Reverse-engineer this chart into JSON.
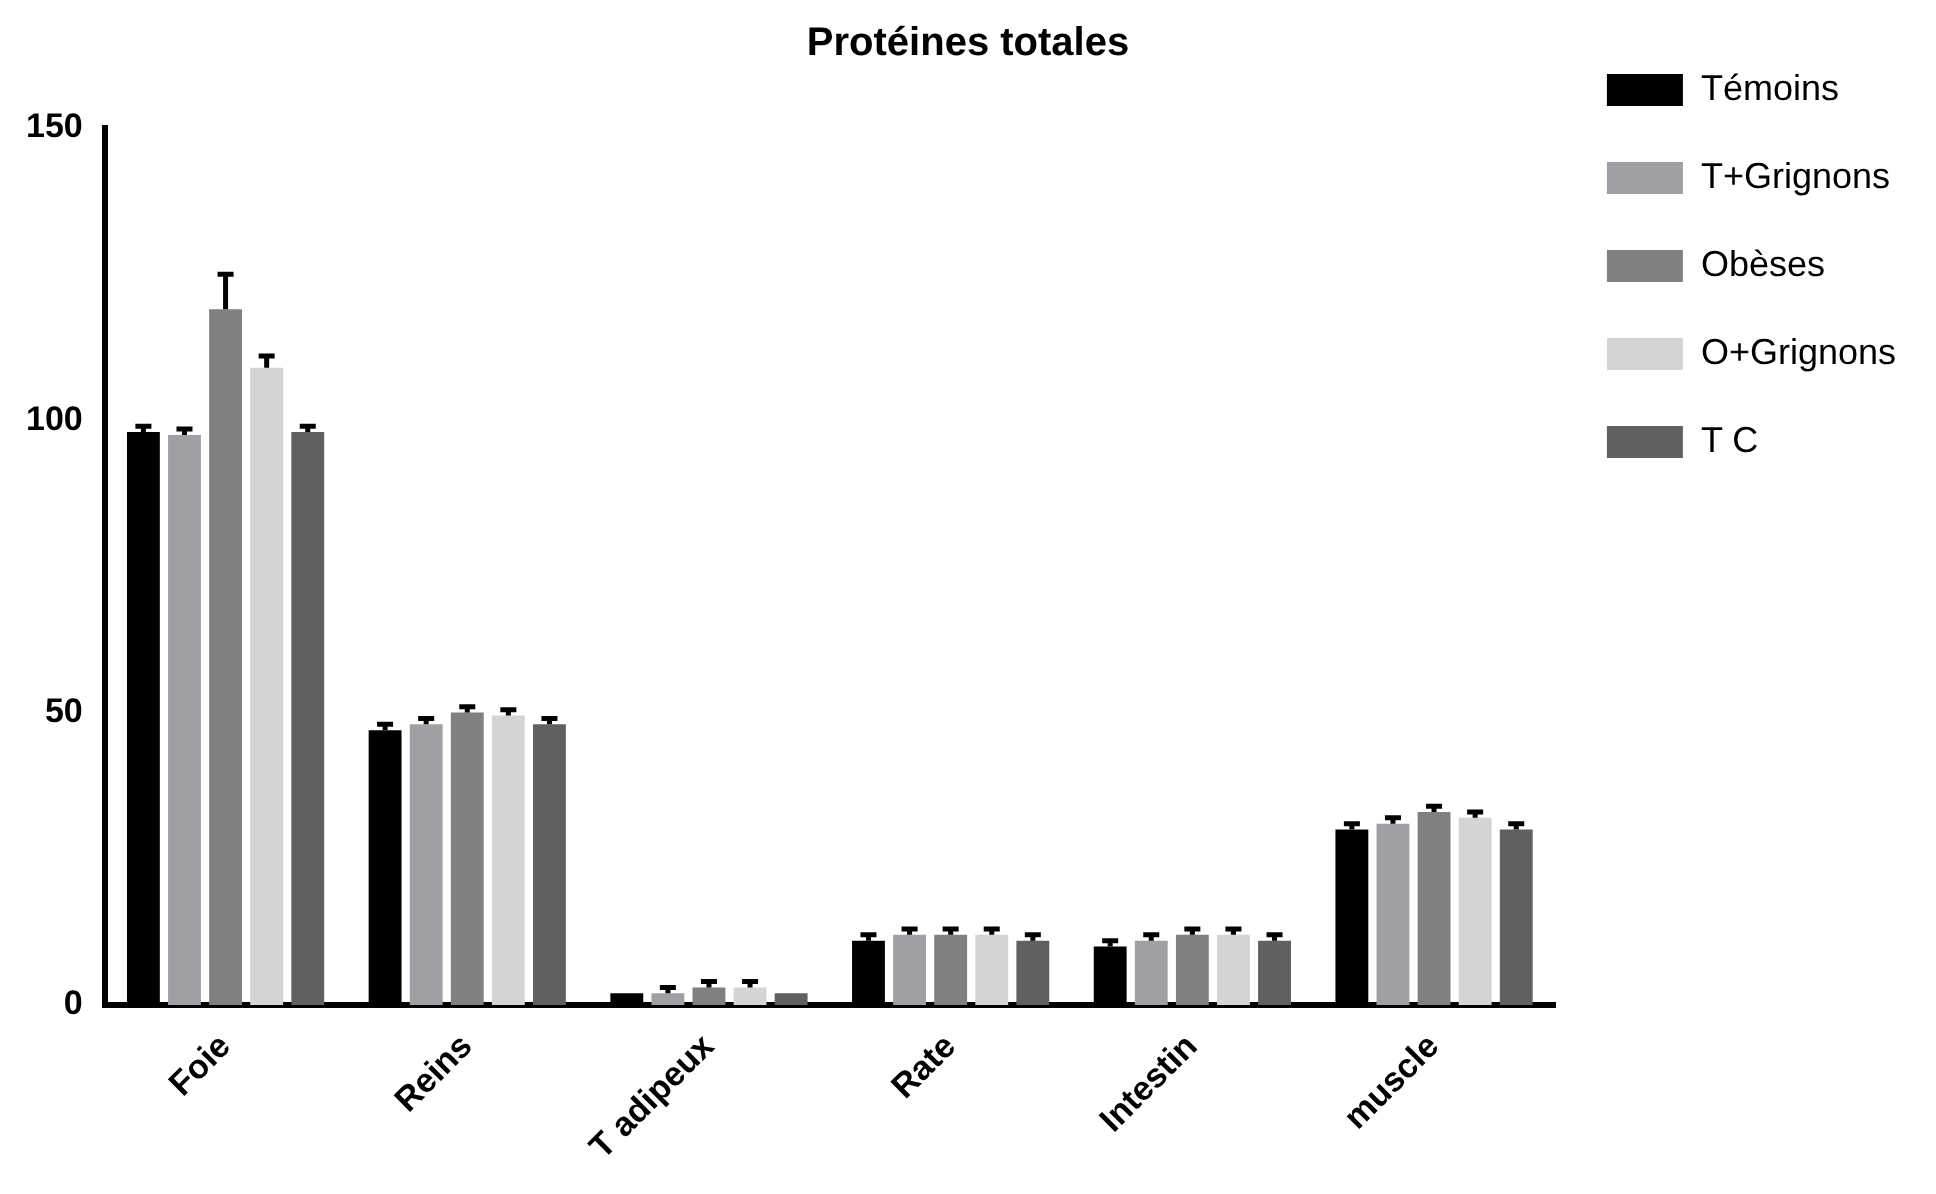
{
  "chart_data": {
    "type": "bar",
    "title": "Protéines totales",
    "categories": [
      "Foie",
      "Reins",
      "T adipeux",
      "Rate",
      "Intestin",
      "muscle"
    ],
    "series": [
      {
        "name": "Témoins",
        "color": "#000000",
        "values": [
          98,
          47,
          2,
          11,
          10,
          30
        ],
        "errors": [
          1,
          1,
          null,
          1,
          1,
          1
        ]
      },
      {
        "name": "T+Grignons",
        "color": "#a0a0a4",
        "values": [
          97.5,
          48,
          2,
          12,
          11,
          31
        ],
        "errors": [
          1,
          1,
          1,
          1,
          1,
          1
        ]
      },
      {
        "name": "Obèses",
        "color": "#808080",
        "values": [
          119,
          50,
          3,
          12,
          12,
          33
        ],
        "errors": [
          6,
          1,
          1,
          1,
          1,
          1
        ]
      },
      {
        "name": "O+Grignons",
        "color": "#d4d4d4",
        "values": [
          109,
          49.5,
          3,
          12,
          12,
          32
        ],
        "errors": [
          2,
          1,
          1,
          1,
          1,
          1
        ]
      },
      {
        "name": "T C",
        "color": "#606060",
        "values": [
          98,
          48,
          2,
          11,
          11,
          30
        ],
        "errors": [
          1,
          1,
          null,
          1,
          1,
          1
        ]
      }
    ],
    "ylim": [
      0,
      150
    ],
    "yticks": [
      0,
      50,
      100,
      150
    ],
    "grid": false,
    "legend": "top right"
  }
}
